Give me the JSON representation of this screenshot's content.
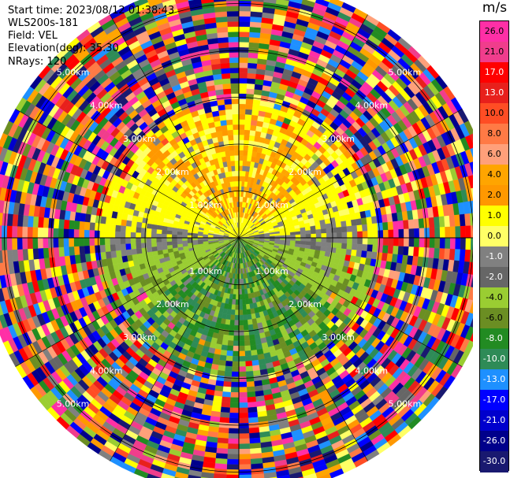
{
  "header": {
    "start_time": "Start time: 2023/08/12 01:38:43",
    "instrument": "WLS200s-181",
    "field": "Field: VEL",
    "elevation": "Elevation(deg): 35.30",
    "nrays": "NRays: 120"
  },
  "colorbar": {
    "unit": "m/s",
    "ticks": [
      "26.0",
      "21.0",
      "17.0",
      "13.0",
      "10.0",
      "8.0",
      "6.0",
      "4.0",
      "2.0",
      "1.0",
      "0.0",
      "-1.0",
      "-2.0",
      "-4.0",
      "-6.0",
      "-8.0",
      "-10.0",
      "-13.0",
      "-17.0",
      "-21.0",
      "-26.0",
      "-30.0"
    ],
    "colors": [
      "#ff2fa6",
      "#f03d8c",
      "#ff0000",
      "#e8201c",
      "#ff4d24",
      "#ff7a45",
      "#ffa07a",
      "#ffa500",
      "#ff9800",
      "#ffff00",
      "#ffff66",
      "#808080",
      "#666666",
      "#9acd32",
      "#6b8e23",
      "#228b22",
      "#2e8b57",
      "#1e90ff",
      "#0000ff",
      "#0000cd",
      "#00008b",
      "#191970"
    ]
  },
  "range_labels": {
    "ring_1": "1.00km",
    "ring_2": "2.00km",
    "ring_3": "3.00km",
    "ring_4": "4.00km",
    "ring_5": "5.00km"
  },
  "chart_data": {
    "type": "heatmap",
    "subtype": "PPI radial velocity",
    "field": "VEL",
    "unit": "m/s",
    "nrays": 120,
    "range_rings_km": [
      1,
      2,
      3,
      4,
      5
    ],
    "max_range_km": 5.5,
    "velocity_pattern": [
      {
        "region": "north (inner)",
        "velocity_mps": [
          2,
          6
        ],
        "description": "positive velocities, yellow-orange"
      },
      {
        "region": "south (inner)",
        "velocity_mps": [
          -8,
          -2
        ],
        "description": "negative velocities, green"
      },
      {
        "region": "east-west axis",
        "velocity_mps": [
          -1,
          1
        ],
        "description": "near zero, gray"
      },
      {
        "region": "outer rings",
        "velocity_mps": [
          -30,
          26
        ],
        "description": "noise, random colors"
      }
    ],
    "colorbar_ticks": [
      26,
      21,
      17,
      13,
      10,
      8,
      6,
      4,
      2,
      1,
      0,
      -1,
      -2,
      -4,
      -6,
      -8,
      -10,
      -13,
      -17,
      -21,
      -26,
      -30
    ]
  }
}
